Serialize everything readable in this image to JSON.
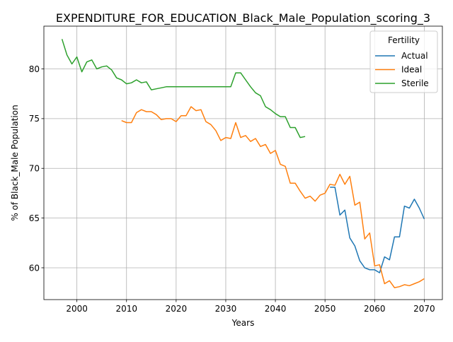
{
  "chart_data": {
    "type": "line",
    "title": "EXPENDITURE_FOR_EDUCATION_Black_Male_Population_scoring_3",
    "xlabel": "Years",
    "ylabel": "% of Black_Male Population",
    "xlim": [
      1993.35,
      2073.65
    ],
    "ylim": [
      56.8,
      84.3
    ],
    "xticks": [
      2000,
      2010,
      2020,
      2030,
      2040,
      2050,
      2060,
      2070
    ],
    "yticks": [
      60,
      65,
      70,
      75,
      80
    ],
    "grid": true,
    "legend": {
      "title": "Fertility",
      "position": "top-right"
    },
    "series": [
      {
        "name": "Actual",
        "color": "#1f77b4",
        "x": [
          2051,
          2052,
          2053,
          2054,
          2055,
          2056,
          2057,
          2058,
          2059,
          2060,
          2061,
          2062,
          2063,
          2064,
          2065,
          2066,
          2067,
          2068,
          2069,
          2070
        ],
        "y": [
          68.1,
          68.1,
          65.3,
          65.8,
          63.0,
          62.2,
          60.7,
          60.0,
          59.8,
          59.8,
          59.5,
          61.1,
          60.8,
          63.1,
          63.1,
          66.2,
          66.0,
          66.9,
          66.0,
          64.9
        ]
      },
      {
        "name": "Ideal",
        "color": "#ff7f0e",
        "x": [
          2009,
          2010,
          2011,
          2012,
          2013,
          2014,
          2015,
          2016,
          2017,
          2018,
          2019,
          2020,
          2021,
          2022,
          2023,
          2024,
          2025,
          2026,
          2027,
          2028,
          2029,
          2030,
          2031,
          2032,
          2033,
          2034,
          2035,
          2036,
          2037,
          2038,
          2039,
          2040,
          2041,
          2042,
          2043,
          2044,
          2045,
          2046,
          2047,
          2048,
          2049,
          2050,
          2051,
          2052,
          2053,
          2054,
          2055,
          2056,
          2057,
          2058,
          2059,
          2060,
          2061,
          2062,
          2063,
          2064,
          2065,
          2066,
          2067,
          2068,
          2069,
          2070
        ],
        "y": [
          74.8,
          74.6,
          74.6,
          75.6,
          75.9,
          75.7,
          75.7,
          75.4,
          74.9,
          75.0,
          75.0,
          74.7,
          75.3,
          75.3,
          76.2,
          75.8,
          75.9,
          74.7,
          74.4,
          73.8,
          72.8,
          73.1,
          73.0,
          74.6,
          73.1,
          73.3,
          72.7,
          73.0,
          72.2,
          72.4,
          71.5,
          71.8,
          70.4,
          70.2,
          68.5,
          68.5,
          67.7,
          67.0,
          67.2,
          66.7,
          67.3,
          67.5,
          68.4,
          68.3,
          69.4,
          68.4,
          69.2,
          66.3,
          66.6,
          62.9,
          63.5,
          60.2,
          60.3,
          58.4,
          58.7,
          58.0,
          58.1,
          58.3,
          58.2,
          58.4,
          58.6,
          58.9
        ]
      },
      {
        "name": "Sterile",
        "color": "#2ca02c",
        "x": [
          1997,
          1998,
          1999,
          2000,
          2001,
          2002,
          2003,
          2004,
          2005,
          2006,
          2007,
          2008,
          2009,
          2010,
          2011,
          2012,
          2013,
          2014,
          2015,
          2016,
          2017,
          2018,
          2019,
          2020,
          2021,
          2022,
          2023,
          2024,
          2025,
          2026,
          2027,
          2028,
          2029,
          2030,
          2031,
          2032,
          2033,
          2034,
          2035,
          2036,
          2037,
          2038,
          2039,
          2040,
          2041,
          2042,
          2043,
          2044,
          2045,
          2046
        ],
        "y": [
          83.0,
          81.4,
          80.5,
          81.2,
          79.7,
          80.7,
          80.9,
          80.0,
          80.2,
          80.3,
          79.9,
          79.1,
          78.9,
          78.5,
          78.6,
          78.9,
          78.6,
          78.7,
          77.9,
          78.0,
          78.1,
          78.2,
          78.2,
          78.2,
          78.2,
          78.2,
          78.2,
          78.2,
          78.2,
          78.2,
          78.2,
          78.2,
          78.2,
          78.2,
          78.2,
          79.6,
          79.6,
          78.9,
          78.2,
          77.6,
          77.3,
          76.2,
          75.9,
          75.5,
          75.2,
          75.2,
          74.1,
          74.1,
          73.1,
          73.2
        ]
      }
    ]
  }
}
